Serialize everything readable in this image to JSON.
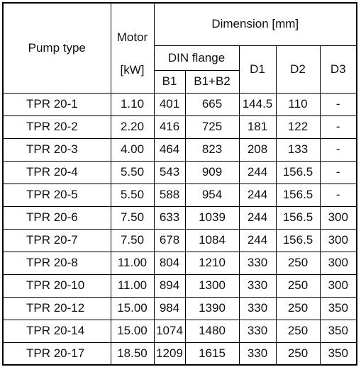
{
  "table": {
    "header": {
      "pump_type": "Pump type",
      "motor": "Motor",
      "motor_unit": "[kW]",
      "dimension": "Dimension [mm]",
      "din_flange": "DIN flange",
      "b1": "B1",
      "b1b2": "B1+B2",
      "d1": "D1",
      "d2": "D2",
      "d3": "D3"
    },
    "rows": [
      [
        "TPR 20-1",
        "1.10",
        "401",
        "665",
        "144.5",
        "110",
        "-"
      ],
      [
        "TPR 20-2",
        "2.20",
        "416",
        "725",
        "181",
        "122",
        "-"
      ],
      [
        "TPR 20-3",
        "4.00",
        "464",
        "823",
        "208",
        "133",
        "-"
      ],
      [
        "TPR 20-4",
        "5.50",
        "543",
        "909",
        "244",
        "156.5",
        "-"
      ],
      [
        "TPR 20-5",
        "5.50",
        "588",
        "954",
        "244",
        "156.5",
        "-"
      ],
      [
        "TPR 20-6",
        "7.50",
        "633",
        "1039",
        "244",
        "156.5",
        "300"
      ],
      [
        "TPR 20-7",
        "7.50",
        "678",
        "1084",
        "244",
        "156.5",
        "300"
      ],
      [
        "TPR 20-8",
        "11.00",
        "804",
        "1210",
        "330",
        "250",
        "300"
      ],
      [
        "TPR 20-10",
        "11.00",
        "894",
        "1300",
        "330",
        "250",
        "300"
      ],
      [
        "TPR 20-12",
        "15.00",
        "984",
        "1390",
        "330",
        "250",
        "350"
      ],
      [
        "TPR 20-14",
        "15.00",
        "1074",
        "1480",
        "330",
        "250",
        "350"
      ],
      [
        "TPR 20-17",
        "18.50",
        "1209",
        "1615",
        "330",
        "250",
        "350"
      ]
    ]
  }
}
